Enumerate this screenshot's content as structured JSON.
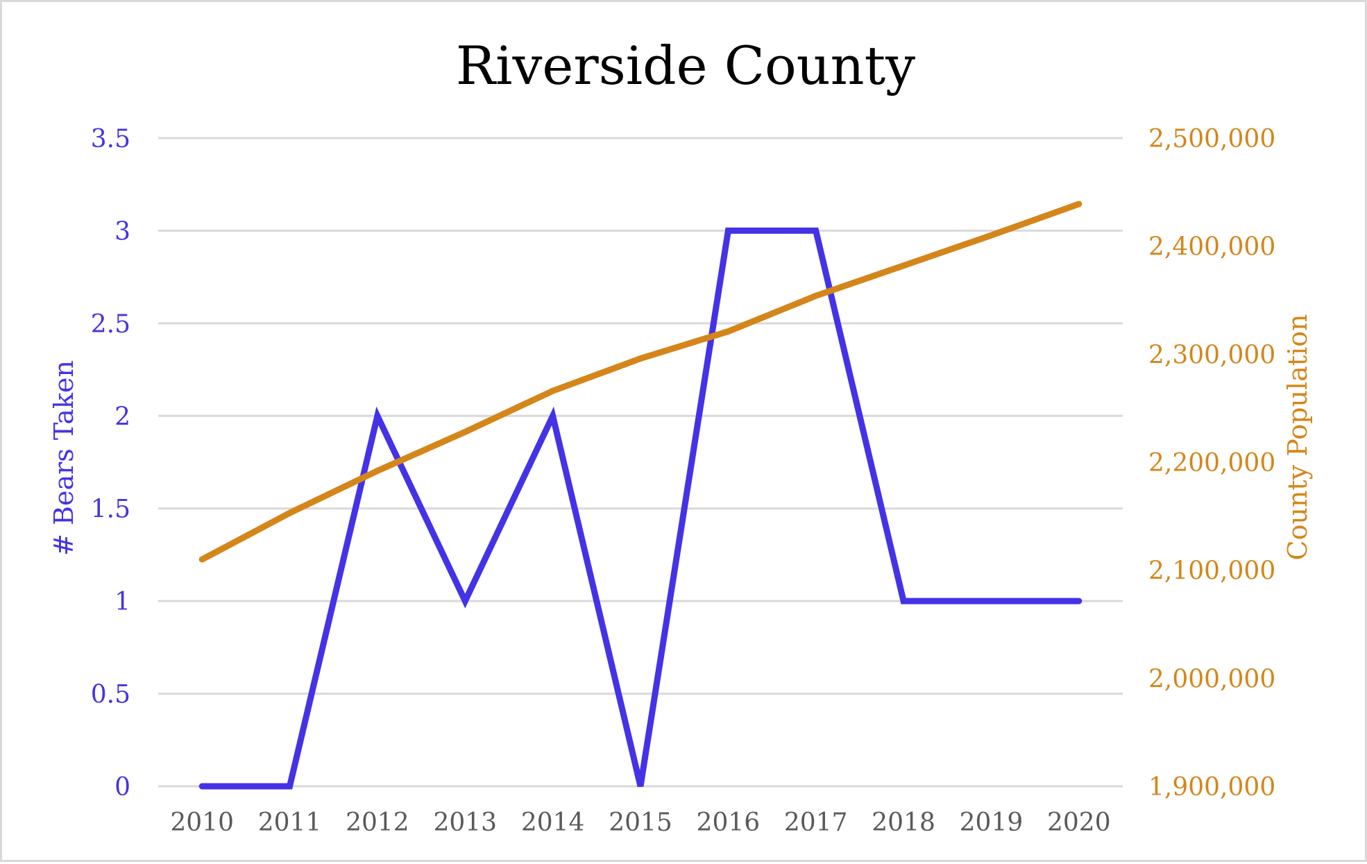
{
  "chart_data": {
    "type": "line",
    "title": "Riverside County",
    "xlabel": "",
    "categories": [
      "2010",
      "2011",
      "2012",
      "2013",
      "2014",
      "2015",
      "2016",
      "2017",
      "2018",
      "2019",
      "2020"
    ],
    "y_left": {
      "label": "# Bears Taken",
      "ylim": [
        0,
        3.5
      ],
      "ticks": [
        "0",
        "0.5",
        "1",
        "1.5",
        "2",
        "2.5",
        "3",
        "3.5"
      ],
      "color": "#4433e6"
    },
    "y_right": {
      "label": "County Population",
      "ylim": [
        1900000,
        2500000
      ],
      "ticks": [
        "1,900,000",
        "2,000,000",
        "2,100,000",
        "2,200,000",
        "2,300,000",
        "2,400,000",
        "2,500,000"
      ],
      "color": "#d4861a"
    },
    "series": [
      {
        "axis": "left",
        "color": "#4433e6",
        "values": [
          0,
          0,
          2,
          1,
          2,
          0,
          3,
          3,
          1,
          1,
          1
        ]
      },
      {
        "axis": "right",
        "color": "#d4861a",
        "values": [
          2110000,
          2153000,
          2192000,
          2228000,
          2266000,
          2296000,
          2321000,
          2354000,
          2382000,
          2410000,
          2439000
        ]
      }
    ],
    "grid": true,
    "legend": "none"
  }
}
